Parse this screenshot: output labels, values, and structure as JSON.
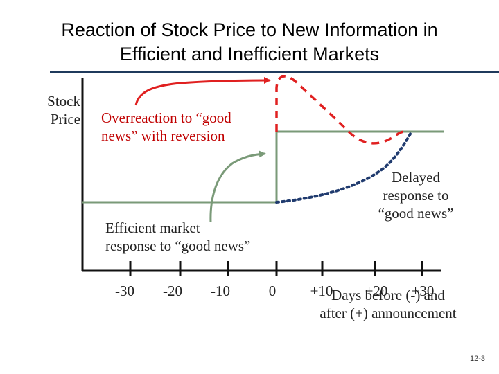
{
  "title": {
    "line1": "Reaction of Stock Price to New Information in",
    "line2": "Efficient and Inefficient Markets"
  },
  "y_axis_label": {
    "line1": "Stock",
    "line2": "Price"
  },
  "labels": {
    "overreaction": {
      "line1": "Overreaction to “good",
      "line2": "news” with reversion"
    },
    "delayed": {
      "line1": "Delayed",
      "line2": "response to",
      "line3": "“good news”"
    },
    "efficient": {
      "line1": "Efficient market",
      "line2": "response to “good news”"
    }
  },
  "x_ticks": [
    "-30",
    "-20",
    "-10",
    "0",
    "+10",
    "+20",
    "+30"
  ],
  "x_axis_label": {
    "line1": "Days before (-) and",
    "line2": "after (+) announcement"
  },
  "slide_number": "12-3",
  "colors": {
    "efficient": "#7a9a78",
    "overreaction": "#e02020",
    "delayed": "#1f3a6e",
    "axis": "#111111",
    "divider": "#1f3a5c"
  }
}
